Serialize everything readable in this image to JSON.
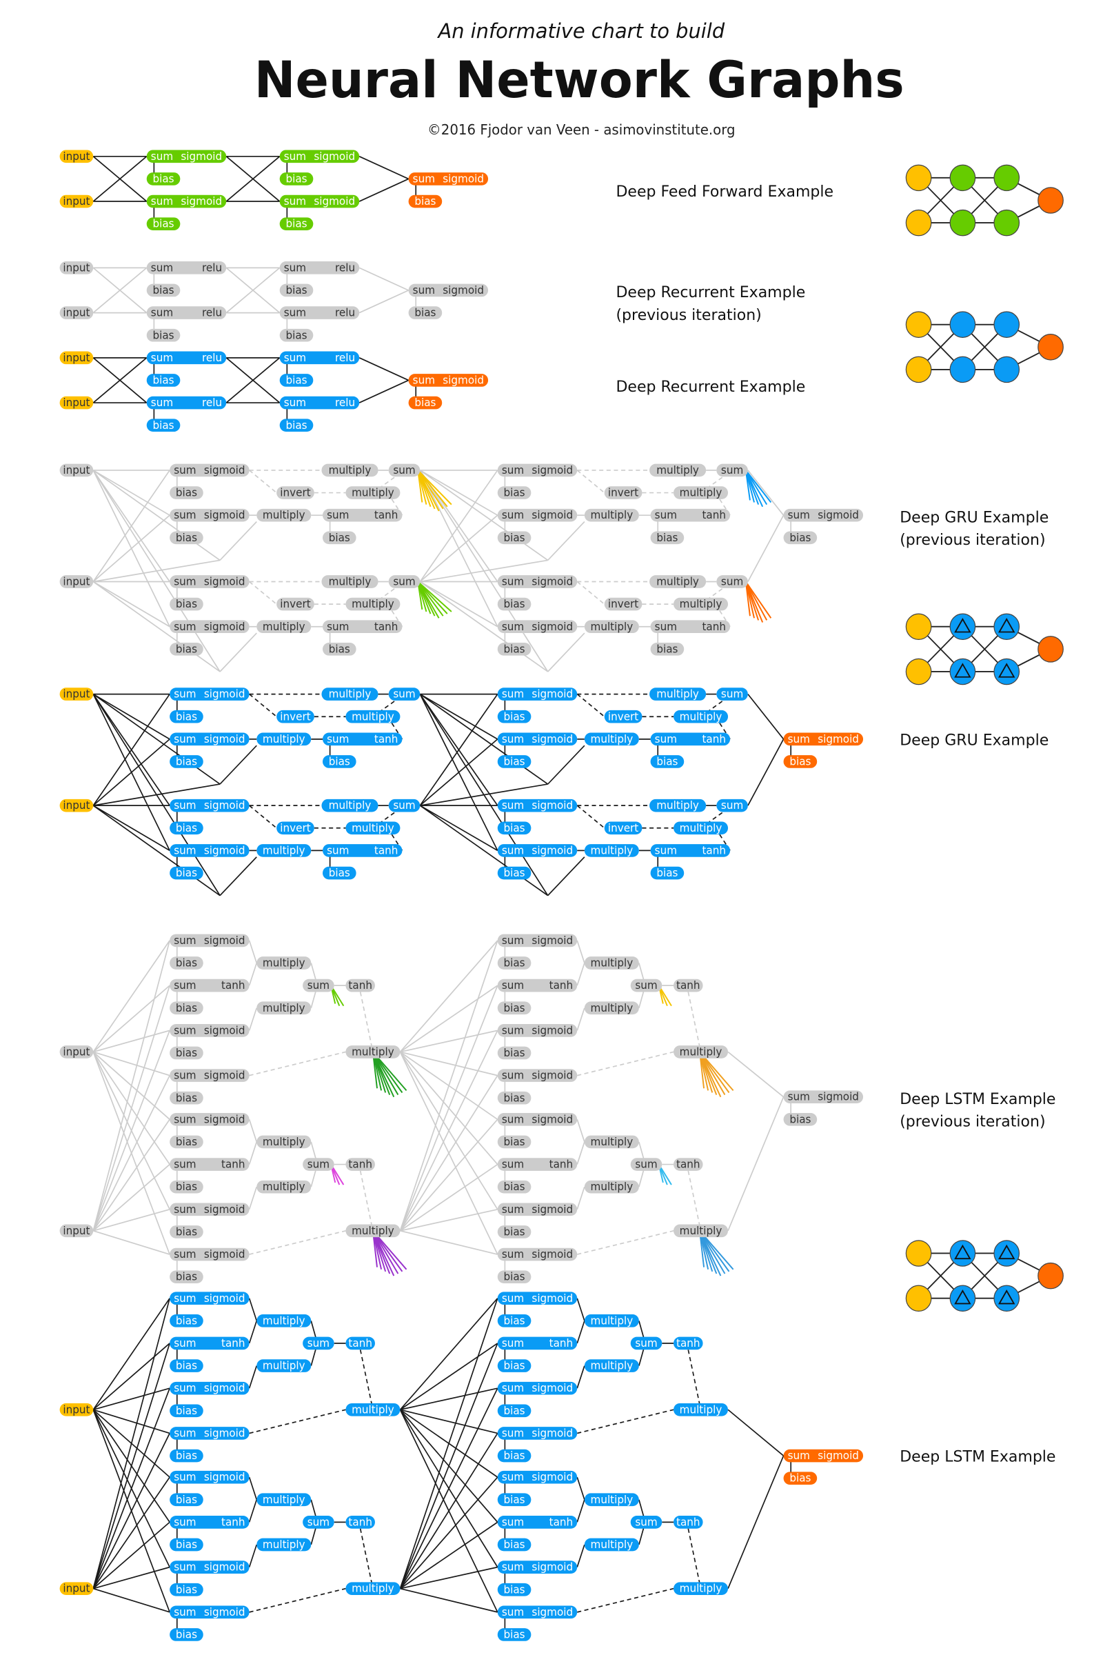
{
  "header": {
    "subtitle": "An informative chart to build",
    "title": "Neural Network Graphs",
    "credit": "©2016 Fjodor van Veen - asimovinstitute.org"
  },
  "sections": [
    {
      "label": [
        "Deep Feed Forward Example"
      ],
      "nodes": [
        "input",
        "input",
        "sum",
        "sigmoid",
        "bias",
        "sum",
        "sigmoid",
        "bias",
        "sum",
        "sigmoid",
        "bias",
        "sum",
        "sigmoid",
        "bias",
        "sum",
        "sigmoid",
        "bias"
      ]
    },
    {
      "label": [
        "Deep Recurrent Example",
        "(previous iteration)"
      ],
      "nodes": [
        "input",
        "input",
        "sum",
        "relu",
        "bias",
        "sum",
        "relu",
        "bias",
        "sum",
        "relu",
        "bias",
        "sum",
        "relu",
        "bias",
        "sum",
        "sigmoid",
        "bias"
      ]
    },
    {
      "label": [
        "Deep Recurrent Example"
      ],
      "nodes": [
        "input",
        "input",
        "sum",
        "relu",
        "bias",
        "sum",
        "relu",
        "bias",
        "sum",
        "relu",
        "bias",
        "sum",
        "relu",
        "bias",
        "sum",
        "sigmoid",
        "bias"
      ]
    },
    {
      "label": [
        "Deep GRU Example",
        "(previous iteration)"
      ],
      "nodes": [
        "input",
        "input",
        "sum",
        "sigmoid",
        "bias",
        "multiply",
        "sum",
        "invert",
        "multiply",
        "sum",
        "sigmoid",
        "bias",
        "multiply",
        "sum",
        "tanh",
        "bias",
        "sum",
        "sigmoid",
        "bias",
        "multiply",
        "sum",
        "invert",
        "multiply",
        "sum",
        "sigmoid",
        "bias",
        "multiply",
        "sum",
        "tanh",
        "bias",
        "sum",
        "sigmoid",
        "bias",
        "multiply",
        "sum",
        "invert",
        "multiply",
        "sum",
        "sigmoid",
        "bias",
        "multiply",
        "sum",
        "tanh",
        "bias",
        "sum",
        "sigmoid",
        "bias",
        "multiply",
        "sum",
        "invert",
        "multiply",
        "sum",
        "sigmoid",
        "bias",
        "multiply",
        "sum",
        "tanh",
        "bias",
        "sum",
        "sigmoid",
        "bias"
      ]
    },
    {
      "label": [
        "Deep GRU Example"
      ],
      "nodes": [
        "input",
        "input",
        "sum",
        "sigmoid",
        "bias",
        "multiply",
        "sum",
        "invert",
        "multiply",
        "sum",
        "sigmoid",
        "bias",
        "multiply",
        "sum",
        "tanh",
        "bias",
        "sum",
        "sigmoid",
        "bias",
        "multiply",
        "sum",
        "invert",
        "multiply",
        "sum",
        "sigmoid",
        "bias",
        "multiply",
        "sum",
        "tanh",
        "bias",
        "sum",
        "sigmoid",
        "bias",
        "multiply",
        "sum",
        "invert",
        "multiply",
        "sum",
        "sigmoid",
        "bias",
        "multiply",
        "sum",
        "tanh",
        "bias",
        "sum",
        "sigmoid",
        "bias",
        "multiply",
        "sum",
        "invert",
        "multiply",
        "sum",
        "sigmoid",
        "bias",
        "multiply",
        "sum",
        "tanh",
        "bias",
        "sum",
        "sigmoid",
        "bias"
      ]
    },
    {
      "label": [
        "Deep LSTM Example",
        "(previous iteration)"
      ],
      "nodes": [
        "input",
        "input",
        "sum",
        "sigmoid",
        "bias",
        "multiply",
        "sum",
        "tanh",
        "bias",
        "multiply",
        "sum",
        "tanh",
        "sum",
        "sigmoid",
        "bias",
        "multiply",
        "sum",
        "sigmoid",
        "bias",
        "sum",
        "sigmoid",
        "bias",
        "multiply",
        "sum",
        "tanh",
        "bias",
        "multiply",
        "sum",
        "tanh",
        "sum",
        "sigmoid",
        "bias",
        "multiply",
        "sum",
        "sigmoid",
        "bias",
        "sum",
        "sigmoid",
        "bias",
        "multiply",
        "sum",
        "tanh",
        "bias",
        "multiply",
        "sum",
        "tanh",
        "sum",
        "sigmoid",
        "bias",
        "multiply",
        "sum",
        "sigmoid",
        "bias",
        "sum",
        "sigmoid",
        "bias",
        "multiply",
        "sum",
        "tanh",
        "bias",
        "multiply",
        "sum",
        "tanh",
        "sum",
        "sigmoid",
        "bias",
        "multiply",
        "sum",
        "sigmoid",
        "bias",
        "sum",
        "sigmoid",
        "bias"
      ]
    },
    {
      "label": [
        "Deep LSTM Example"
      ],
      "nodes": [
        "input",
        "input",
        "sum",
        "sigmoid",
        "bias",
        "multiply",
        "sum",
        "tanh",
        "bias",
        "multiply",
        "sum",
        "tanh",
        "sum",
        "sigmoid",
        "bias",
        "multiply",
        "sum",
        "sigmoid",
        "bias",
        "sum",
        "sigmoid",
        "bias",
        "multiply",
        "sum",
        "tanh",
        "bias",
        "multiply",
        "sum",
        "tanh",
        "sum",
        "sigmoid",
        "bias",
        "multiply",
        "sum",
        "sigmoid",
        "bias",
        "sum",
        "sigmoid",
        "bias",
        "multiply",
        "sum",
        "tanh",
        "bias",
        "multiply",
        "sum",
        "tanh",
        "sum",
        "sigmoid",
        "bias",
        "multiply",
        "sum",
        "sigmoid",
        "bias",
        "sum",
        "sigmoid",
        "bias",
        "multiply",
        "sum",
        "tanh",
        "bias",
        "multiply",
        "sum",
        "tanh",
        "sum",
        "sigmoid",
        "bias",
        "multiply",
        "sum",
        "sigmoid",
        "bias",
        "sum",
        "sigmoid",
        "bias"
      ]
    }
  ]
}
